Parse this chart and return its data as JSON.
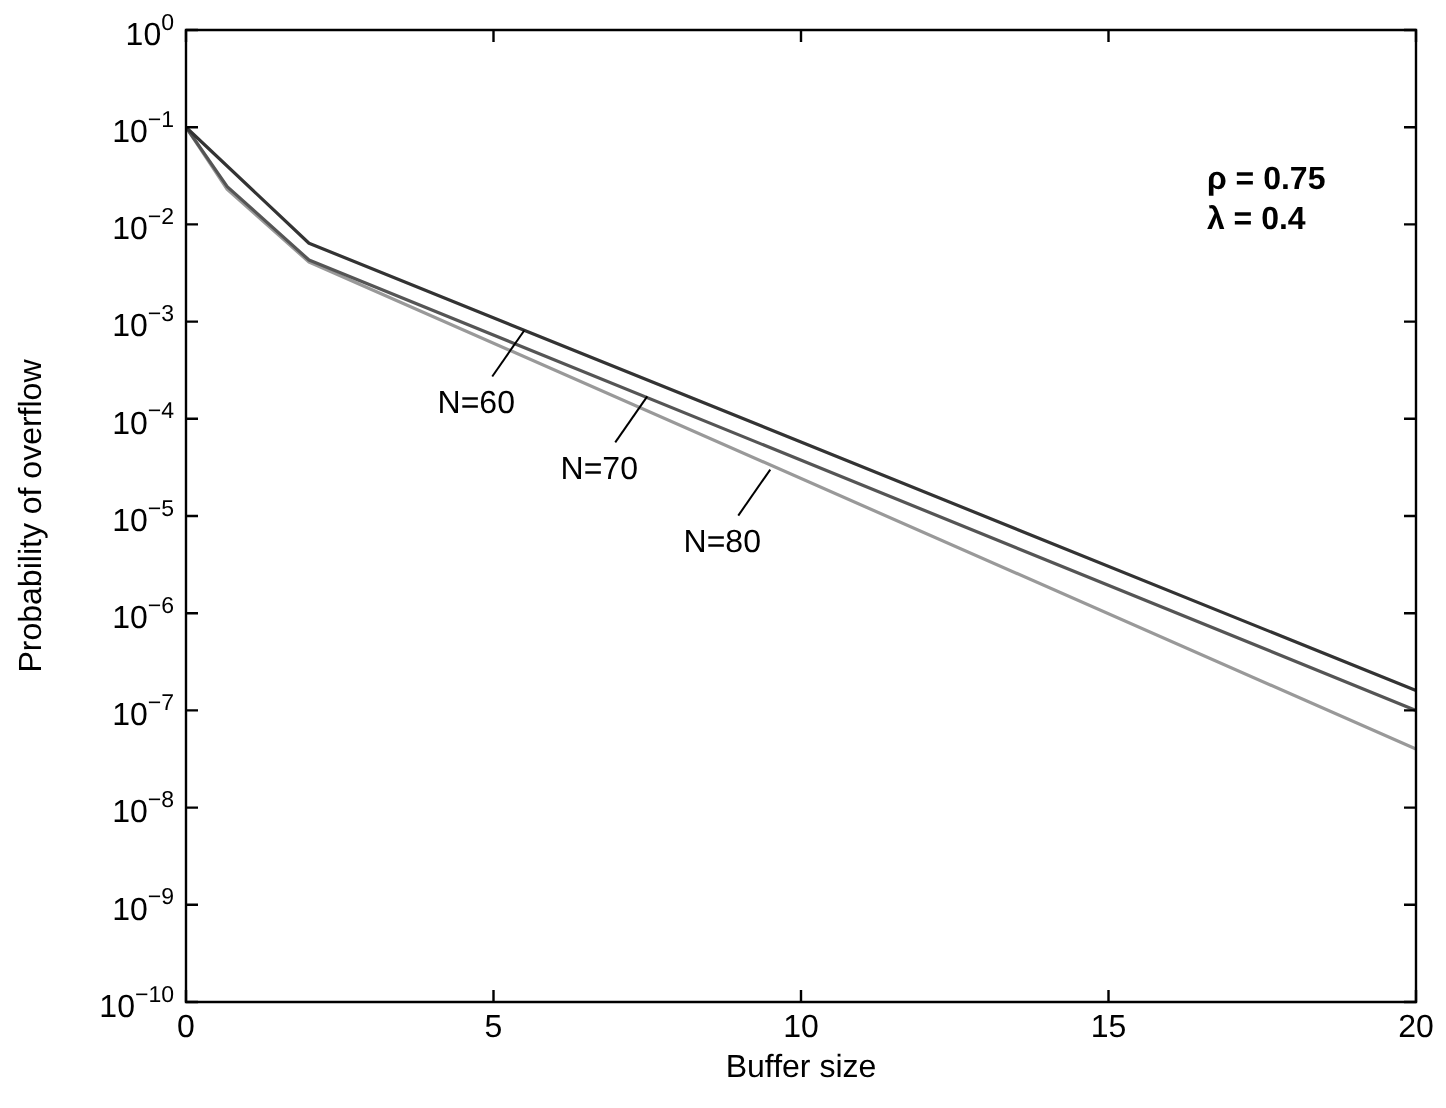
{
  "chart_data": {
    "type": "line",
    "xlabel": "Buffer size",
    "ylabel": "Probability of overflow",
    "log": "y",
    "grid": false,
    "legend": false,
    "marker": "none",
    "line_style": "solid",
    "xlim": [
      0,
      20
    ],
    "xticks": [
      0,
      5,
      10,
      15,
      20
    ],
    "ylim": [
      1e-10,
      1
    ],
    "yticks": [
      {
        "value": 1e-10,
        "label": "10$^{−10}$"
      },
      {
        "value": 1e-09,
        "label": "10$^{−9}$"
      },
      {
        "value": 1e-08,
        "label": "10$^{−8}$"
      },
      {
        "value": 1e-07,
        "label": "10$^{−7}$"
      },
      {
        "value": 1e-06,
        "label": "10$^{−6}$"
      },
      {
        "value": 1e-05,
        "label": "10$^{−5}$"
      },
      {
        "value": 0.0001,
        "label": "10$^{−4}$"
      },
      {
        "value": 0.001,
        "label": "10$^{−3}$"
      },
      {
        "value": 0.01,
        "label": "10$^{−2}$"
      },
      {
        "value": 0.1,
        "label": "10$^{−1}$"
      },
      {
        "value": 1,
        "label": "10$^{0}$"
      }
    ],
    "series": [
      {
        "color": "#333333",
        "x": [
          0,
          2,
          20
        ],
        "values": [
          0.1,
          0.0064,
          1.6e-07
        ]
      },
      {
        "color": "#555555",
        "x": [
          0,
          0.67,
          2,
          20
        ],
        "values": [
          0.1,
          0.0245,
          0.0043,
          1e-07
        ]
      },
      {
        "color": "#999999",
        "x": [
          0,
          0.67,
          2,
          20
        ],
        "values": [
          0.1,
          0.023,
          0.0041,
          4e-08
        ]
      }
    ],
    "annotations": [
      {
        "text": "N=60",
        "x": 5.5,
        "y": 0.00081
      },
      {
        "text": "N=70",
        "x": 7.5,
        "y": 0.00017
      },
      {
        "text": "N=80",
        "x": 9.5,
        "y": 3e-05
      },
      "ρ = 0.75",
      "λ = 0.4"
    ]
  }
}
